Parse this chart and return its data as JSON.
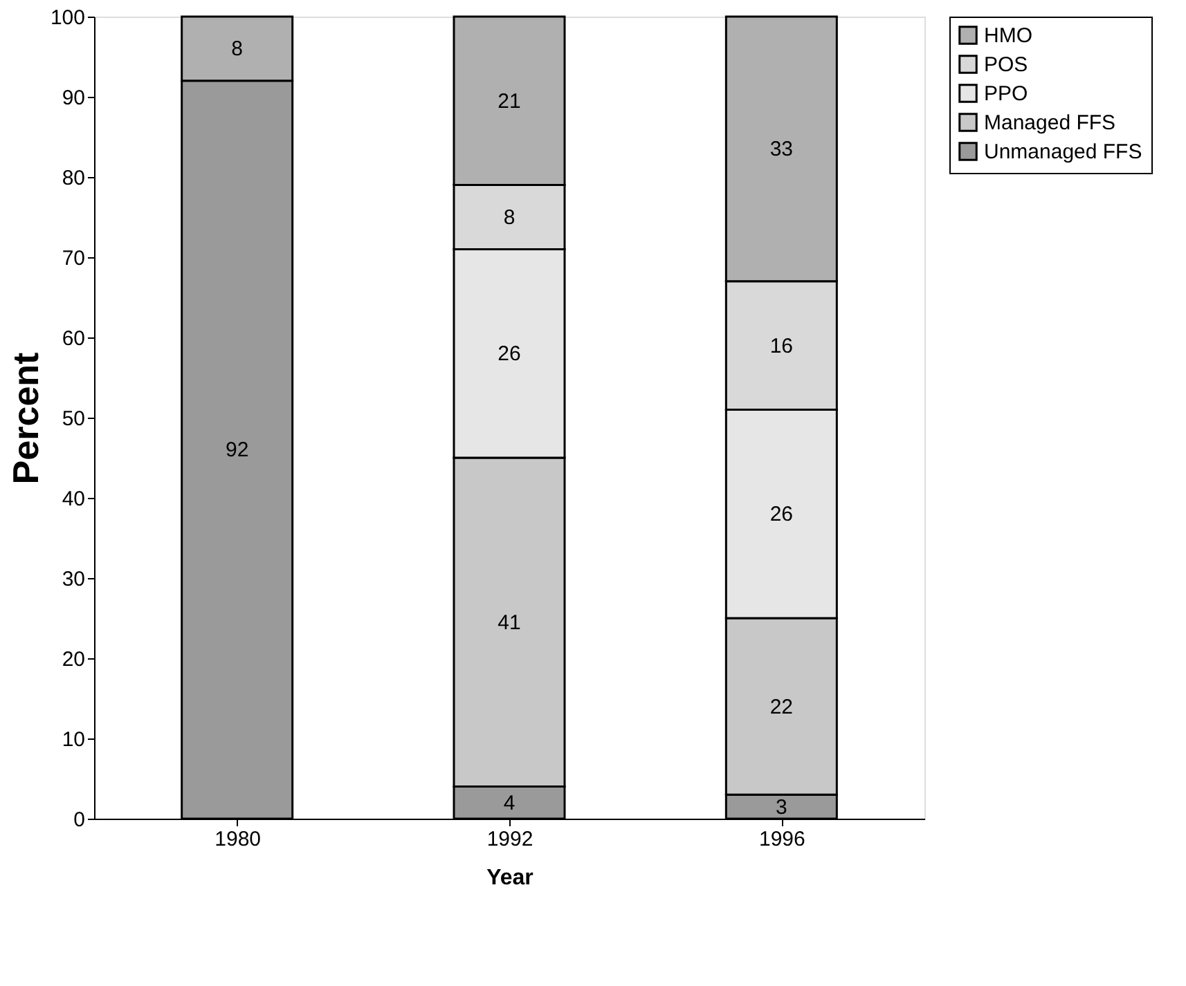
{
  "chart_data": {
    "type": "bar",
    "stacked": true,
    "xlabel": "Year",
    "ylabel": "Percent",
    "categories": [
      "1980",
      "1992",
      "1996"
    ],
    "series": [
      {
        "name": "Unmanaged FFS",
        "color": "#9a9a9a",
        "values": [
          92,
          4,
          3
        ]
      },
      {
        "name": "Managed FFS",
        "color": "#c8c8c8",
        "values": [
          null,
          41,
          22
        ]
      },
      {
        "name": "PPO",
        "color": "#e6e6e6",
        "values": [
          null,
          26,
          26
        ]
      },
      {
        "name": "POS",
        "color": "#d9d9d9",
        "values": [
          null,
          8,
          16
        ]
      },
      {
        "name": "HMO",
        "color": "#b0b0b0",
        "values": [
          8,
          21,
          33
        ]
      }
    ],
    "ylim": [
      0,
      100
    ],
    "yticks": [
      0,
      10,
      20,
      30,
      40,
      50,
      60,
      70,
      80,
      90,
      100
    ],
    "data_labels": true,
    "legend": "right",
    "grid": false
  }
}
